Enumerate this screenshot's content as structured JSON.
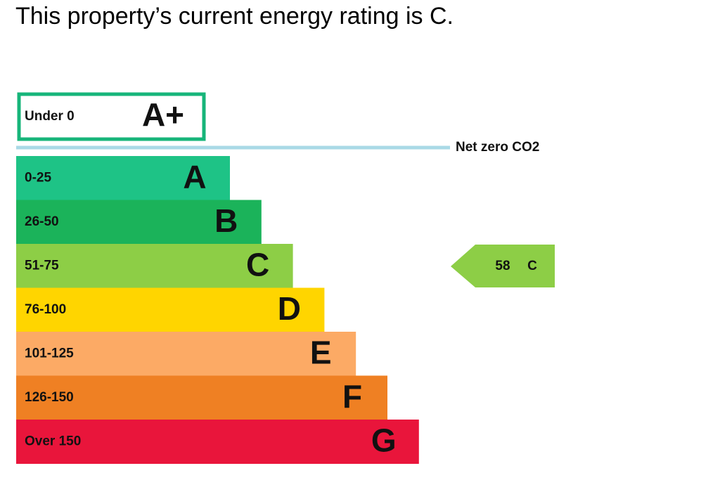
{
  "title": "This property’s current energy rating is C.",
  "top_band": {
    "range": "Under 0",
    "letter": "A+",
    "color": "#17b57a"
  },
  "net_zero": {
    "label": "Net zero CO2",
    "color": "#a9d9e6"
  },
  "bands": [
    {
      "range": "0-25",
      "letter": "A",
      "color": "#1ec386"
    },
    {
      "range": "26-50",
      "letter": "B",
      "color": "#1bb35a"
    },
    {
      "range": "51-75",
      "letter": "C",
      "color": "#8dce46"
    },
    {
      "range": "76-100",
      "letter": "D",
      "color": "#ffd500"
    },
    {
      "range": "101-125",
      "letter": "E",
      "color": "#fcaa65"
    },
    {
      "range": "126-150",
      "letter": "F",
      "color": "#ef8023"
    },
    {
      "range": "Over 150",
      "letter": "G",
      "color": "#e9153b"
    }
  ],
  "current": {
    "score": 58,
    "letter": "C",
    "color": "#8dce46"
  }
}
